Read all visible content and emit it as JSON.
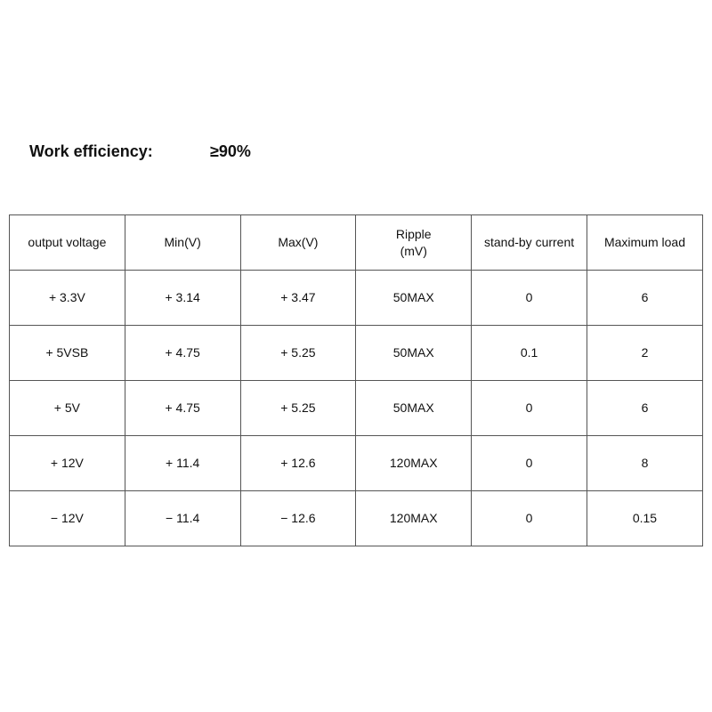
{
  "heading": {
    "label": "Work efficiency:",
    "value": "≥90%"
  },
  "table": {
    "headers": [
      "output voltage",
      "Min(V)",
      "Max(V)",
      "Ripple\n(mV)",
      "stand-by current",
      "Maximum load"
    ],
    "rows": [
      [
        "+ 3.3V",
        "+ 3.14",
        "+ 3.47",
        "50MAX",
        "0",
        "6"
      ],
      [
        "+ 5VSB",
        "+ 4.75",
        "+ 5.25",
        "50MAX",
        "0.1",
        "2"
      ],
      [
        "+ 5V",
        "+ 4.75",
        "+ 5.25",
        "50MAX",
        "0",
        "6"
      ],
      [
        "+ 12V",
        "+ 11.4",
        "+ 12.6",
        "120MAX",
        "0",
        "8"
      ],
      [
        "− 12V",
        "− 11.4",
        "− 12.6",
        "120MAX",
        "0",
        "0.15"
      ]
    ]
  }
}
